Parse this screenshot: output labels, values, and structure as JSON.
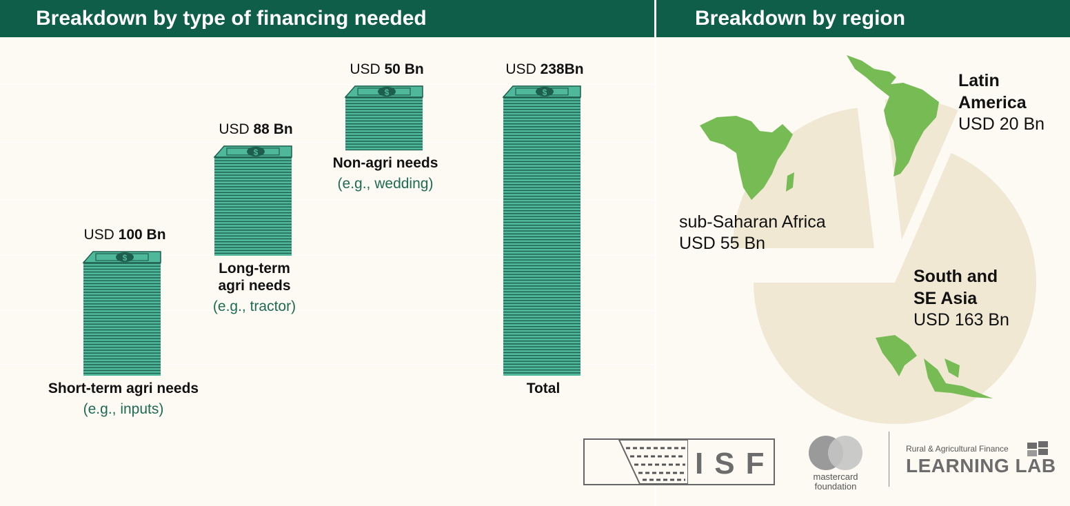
{
  "header": {
    "left_title": "Breakdown by type of financing needed",
    "right_title": "Breakdown by region"
  },
  "colors": {
    "header_bg": "#0f5e4a",
    "background": "#fcfaf3",
    "money_green": "#4fb89b",
    "money_dark": "#1e5e4c",
    "pie_fill": "#f1e8d4",
    "map_green": "#77bb55",
    "sub_text": "#1d6a55"
  },
  "chart_data": [
    {
      "type": "bar",
      "title": "Breakdown by type of financing needed",
      "categories": [
        {
          "label_lines": [
            "Short-term agri needs"
          ],
          "sub": "(e.g., inputs)",
          "value_prefix": "USD ",
          "value_text": "100 Bn"
        },
        {
          "label_lines": [
            "Long-term",
            "agri needs"
          ],
          "sub": "(e.g., tractor)",
          "value_prefix": "USD ",
          "value_text": "88 Bn"
        },
        {
          "label_lines": [
            "Non-agri needs"
          ],
          "sub": "(e.g., wedding)",
          "value_prefix": "USD ",
          "value_text": "50 Bn"
        },
        {
          "label_lines": [
            "Total"
          ],
          "sub": "",
          "value_prefix": "USD ",
          "value_text": "238Bn"
        }
      ],
      "values": [
        100,
        88,
        50,
        238
      ],
      "start": [
        0,
        100,
        188,
        0
      ],
      "unit": "USD Bn"
    },
    {
      "type": "pie",
      "title": "Breakdown by region",
      "slices": [
        {
          "label_lines": [
            "sub-Saharan Africa"
          ],
          "value_text": "USD 55 Bn",
          "value": 55
        },
        {
          "label_lines": [
            "Latin",
            "America"
          ],
          "value_text": "USD 20 Bn",
          "value": 20
        },
        {
          "label_lines": [
            "South and",
            "SE Asia"
          ],
          "value_text": "USD 163 Bn",
          "value": 163
        }
      ]
    }
  ],
  "logos": {
    "isf": "ISF",
    "mastercard_line1": "mastercard",
    "mastercard_line2": "foundation",
    "learning_lab_small": "Rural & Agricultural Finance",
    "learning_lab_big": "LEARNING LAB"
  }
}
